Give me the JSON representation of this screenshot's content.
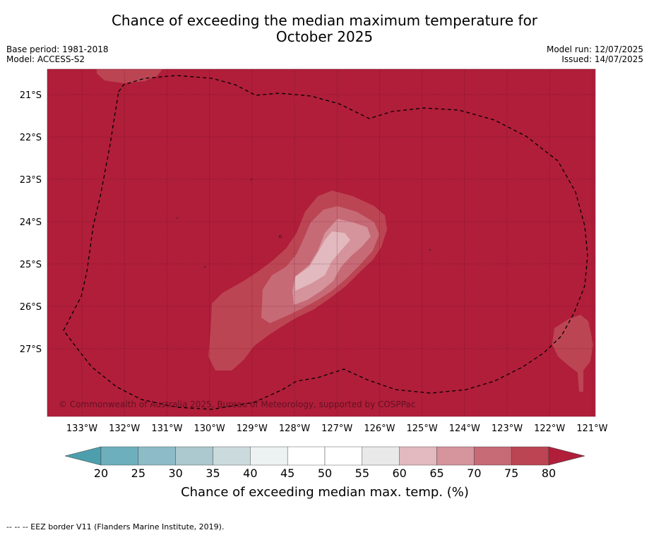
{
  "title_line1": "Chance of exceeding the median maximum temperature for",
  "title_line2": "October 2025",
  "base_period": "Base period: 1981-2018",
  "model": "Model: ACCESS-S2",
  "model_run": "Model run: 12/07/2025",
  "issued": "Issued: 14/07/2025",
  "copyright": "© Commonwealth of Australia 2025, Bureau of Meteorology, supported by COSPPac",
  "lon_labels": [
    "133°W",
    "132°W",
    "131°W",
    "130°W",
    "129°W",
    "128°W",
    "127°W",
    "126°W",
    "125°W",
    "124°W",
    "123°W",
    "122°W",
    "121°W"
  ],
  "lat_labels": [
    "21°S",
    "22°S",
    "23°S",
    "24°S",
    "25°S",
    "26°S",
    "27°S"
  ],
  "colorbar": {
    "title": "Chance of exceeding median max. temp. (%)",
    "ticks": [
      "20",
      "25",
      "30",
      "35",
      "40",
      "45",
      "50",
      "55",
      "60",
      "65",
      "70",
      "75",
      "80"
    ],
    "colors": [
      "#6eafbd",
      "#8dbbc6",
      "#abc9ce",
      "#cbdadd",
      "#ecf1f2",
      "#ffffff",
      "#ffffff",
      "#e9e9e9",
      "#e2b9bf",
      "#d5939b",
      "#c66a76",
      "#bc4553"
    ],
    "extend_low": "#4e9fae",
    "extend_high": "#b01e3a"
  },
  "footnote": "--  --  -- EEZ border V11 (Flanders Marine Institute, 2019).",
  "map_colors": {
    "background": "#b01e3a",
    "gt75": "#bc4553",
    "gt70": "#c66a76",
    "gt65": "#d5939b",
    "gt60": "#e2b9bf"
  }
}
